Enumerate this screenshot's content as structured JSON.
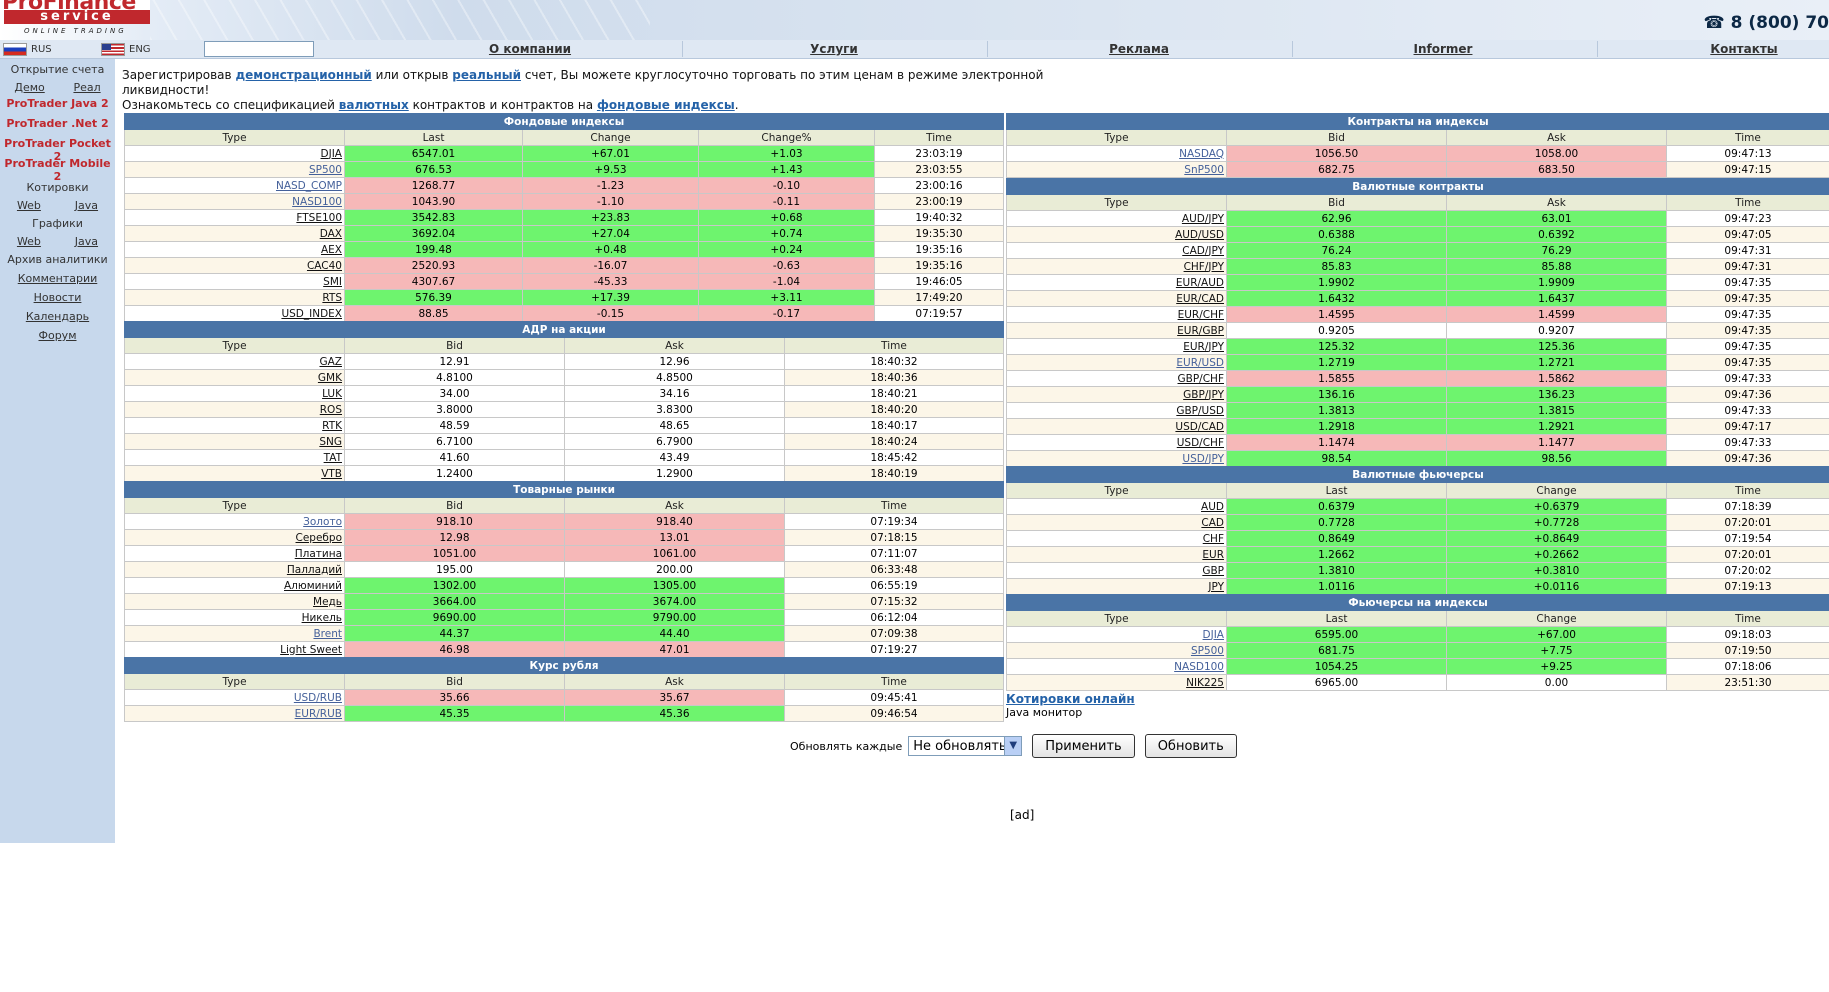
{
  "header": {
    "logo_top": "ProFinance",
    "logo_mid": "service",
    "logo_bottom": "ONLINE TRADING",
    "phone": "☎ 8 (800) 70"
  },
  "lang": {
    "ru": "RUS",
    "en": "ENG"
  },
  "nav": [
    "О компании",
    "Услуги",
    "Реклама",
    "Informer",
    "Контакты"
  ],
  "sidebar": {
    "open_title": "Открытие счета",
    "demo": "Демо",
    "real": "Реал",
    "red_links": [
      "ProTrader Java 2",
      "ProTrader .Net 2",
      "ProTrader Pocket 2",
      "ProTrader Mobile 2"
    ],
    "quotes_title": "Котировки",
    "charts_title": "Графики",
    "web": "Web",
    "java": "Java",
    "archive": "Архив аналитики",
    "items": [
      "Комментарии",
      "Новости",
      "Календарь",
      "Форум"
    ]
  },
  "intro": {
    "l1a": "Зарегистрировав ",
    "l1b": "демонстрационный",
    "l1c": " или открыв ",
    "l1d": "реальный",
    "l1e": " счет, Вы можете круглосуточно торговать по этим ценам в режиме электронной ликвидности!",
    "l2a": "Ознакомьтесь со спецификацией ",
    "l2b": "валютных",
    "l2c": " контрактов и контрактов на ",
    "l2d": "фондовые индексы",
    "l2e": "."
  },
  "tables": {
    "indices": {
      "title": "Фондовые индексы",
      "cols": [
        "Type",
        "Last",
        "Change",
        "Change%",
        "Time"
      ],
      "rows": [
        [
          "DJIA",
          "6547.01",
          "+67.01",
          "+1.03",
          "23:03:19",
          "up",
          0
        ],
        [
          "SP500",
          "676.53",
          "+9.53",
          "+1.43",
          "23:03:55",
          "up",
          1
        ],
        [
          "NASD_COMP",
          "1268.77",
          "-1.23",
          "-0.10",
          "23:00:16",
          "dn",
          1
        ],
        [
          "NASD100",
          "1043.90",
          "-1.10",
          "-0.11",
          "23:00:19",
          "dn",
          1
        ],
        [
          "FTSE100",
          "3542.83",
          "+23.83",
          "+0.68",
          "19:40:32",
          "up",
          0
        ],
        [
          "DAX",
          "3692.04",
          "+27.04",
          "+0.74",
          "19:35:30",
          "up",
          0
        ],
        [
          "AEX",
          "199.48",
          "+0.48",
          "+0.24",
          "19:35:16",
          "up",
          0
        ],
        [
          "CAC40",
          "2520.93",
          "-16.07",
          "-0.63",
          "19:35:16",
          "dn",
          0
        ],
        [
          "SMI",
          "4307.67",
          "-45.33",
          "-1.04",
          "19:46:05",
          "dn",
          0
        ],
        [
          "RTS",
          "576.39",
          "+17.39",
          "+3.11",
          "17:49:20",
          "up",
          0
        ],
        [
          "USD_INDEX",
          "88.85",
          "-0.15",
          "-0.17",
          "07:19:57",
          "dn",
          0
        ]
      ]
    },
    "adr": {
      "title": "АДР на акции",
      "cols": [
        "Type",
        "Bid",
        "Ask",
        "Time"
      ],
      "rows": [
        [
          "GAZ",
          "12.91",
          "12.96",
          "18:40:32"
        ],
        [
          "GMK",
          "4.8100",
          "4.8500",
          "18:40:36"
        ],
        [
          "LUK",
          "34.00",
          "34.16",
          "18:40:21"
        ],
        [
          "ROS",
          "3.8000",
          "3.8300",
          "18:40:20"
        ],
        [
          "RTK",
          "48.59",
          "48.65",
          "18:40:17"
        ],
        [
          "SNG",
          "6.7100",
          "6.7900",
          "18:40:24"
        ],
        [
          "TAT",
          "41.60",
          "43.49",
          "18:45:42"
        ],
        [
          "VTB",
          "1.2400",
          "1.2900",
          "18:40:19"
        ]
      ]
    },
    "commodities": {
      "title": "Товарные рынки",
      "cols": [
        "Type",
        "Bid",
        "Ask",
        "Time"
      ],
      "rows": [
        [
          "Золото",
          "918.10",
          "918.40",
          "07:19:34",
          "dn",
          1
        ],
        [
          "Серебро",
          "12.98",
          "13.01",
          "07:18:15",
          "dn",
          0
        ],
        [
          "Платина",
          "1051.00",
          "1061.00",
          "07:11:07",
          "dn",
          0
        ],
        [
          "Палладий",
          "195.00",
          "200.00",
          "06:33:48",
          "",
          0
        ],
        [
          "Алюминий",
          "1302.00",
          "1305.00",
          "06:55:19",
          "up",
          0
        ],
        [
          "Медь",
          "3664.00",
          "3674.00",
          "07:15:32",
          "up",
          0
        ],
        [
          "Никель",
          "9690.00",
          "9790.00",
          "06:12:04",
          "up",
          0
        ],
        [
          "Brent",
          "44.37",
          "44.40",
          "07:09:38",
          "up",
          1
        ],
        [
          "Light Sweet",
          "46.98",
          "47.01",
          "07:19:27",
          "dn",
          0
        ]
      ]
    },
    "ruble": {
      "title": "Курс рубля",
      "cols": [
        "Type",
        "Bid",
        "Ask",
        "Time"
      ],
      "rows": [
        [
          "USD/RUB",
          "35.66",
          "35.67",
          "09:45:41",
          "dn",
          1
        ],
        [
          "EUR/RUB",
          "45.35",
          "45.36",
          "09:46:54",
          "up",
          1
        ]
      ]
    },
    "index_contracts": {
      "title": "Контракты на индексы",
      "cols": [
        "Type",
        "Bid",
        "Ask",
        "Time"
      ],
      "rows": [
        [
          "NASDAQ",
          "1056.50",
          "1058.00",
          "09:47:13",
          "dn",
          1
        ],
        [
          "SnP500",
          "682.75",
          "683.50",
          "09:47:15",
          "dn",
          1
        ]
      ]
    },
    "fx": {
      "title": "Валютные контракты",
      "cols": [
        "Type",
        "Bid",
        "Ask",
        "Time"
      ],
      "rows": [
        [
          "AUD/JPY",
          "62.96",
          "63.01",
          "09:47:23",
          "up",
          0
        ],
        [
          "AUD/USD",
          "0.6388",
          "0.6392",
          "09:47:05",
          "up",
          0
        ],
        [
          "CAD/JPY",
          "76.24",
          "76.29",
          "09:47:31",
          "up",
          0
        ],
        [
          "CHF/JPY",
          "85.83",
          "85.88",
          "09:47:31",
          "up",
          0
        ],
        [
          "EUR/AUD",
          "1.9902",
          "1.9909",
          "09:47:35",
          "up",
          0
        ],
        [
          "EUR/CAD",
          "1.6432",
          "1.6437",
          "09:47:35",
          "up",
          0
        ],
        [
          "EUR/CHF",
          "1.4595",
          "1.4599",
          "09:47:35",
          "dn",
          0
        ],
        [
          "EUR/GBP",
          "0.9205",
          "0.9207",
          "09:47:35",
          "",
          0
        ],
        [
          "EUR/JPY",
          "125.32",
          "125.36",
          "09:47:35",
          "up",
          0
        ],
        [
          "EUR/USD",
          "1.2719",
          "1.2721",
          "09:47:35",
          "up",
          1
        ],
        [
          "GBP/CHF",
          "1.5855",
          "1.5862",
          "09:47:33",
          "dn",
          0
        ],
        [
          "GBP/JPY",
          "136.16",
          "136.23",
          "09:47:36",
          "up",
          0
        ],
        [
          "GBP/USD",
          "1.3813",
          "1.3815",
          "09:47:33",
          "up",
          0
        ],
        [
          "USD/CAD",
          "1.2918",
          "1.2921",
          "09:47:17",
          "up",
          0
        ],
        [
          "USD/CHF",
          "1.1474",
          "1.1477",
          "09:47:33",
          "dn",
          0
        ],
        [
          "USD/JPY",
          "98.54",
          "98.56",
          "09:47:36",
          "up",
          1
        ]
      ]
    },
    "fx_futures": {
      "title": "Валютные фьючерсы",
      "cols": [
        "Type",
        "Last",
        "Change",
        "Time"
      ],
      "rows": [
        [
          "AUD",
          "0.6379",
          "+0.6379",
          "07:18:39",
          "up",
          0
        ],
        [
          "CAD",
          "0.7728",
          "+0.7728",
          "07:20:01",
          "up",
          0
        ],
        [
          "CHF",
          "0.8649",
          "+0.8649",
          "07:19:54",
          "up",
          0
        ],
        [
          "EUR",
          "1.2662",
          "+0.2662",
          "07:20:01",
          "up",
          0
        ],
        [
          "GBP",
          "1.3810",
          "+0.3810",
          "07:20:02",
          "up",
          0
        ],
        [
          "JPY",
          "1.0116",
          "+0.0116",
          "07:19:13",
          "up",
          0
        ]
      ]
    },
    "index_futures": {
      "title": "Фьючерсы на индексы",
      "cols": [
        "Type",
        "Last",
        "Change",
        "Time"
      ],
      "rows": [
        [
          "DJIA",
          "6595.00",
          "+67.00",
          "09:18:03",
          "up",
          1
        ],
        [
          "SP500",
          "681.75",
          "+7.75",
          "07:19:50",
          "up",
          1
        ],
        [
          "NASD100",
          "1054.25",
          "+9.25",
          "07:18:06",
          "up",
          1
        ],
        [
          "NIK225",
          "6965.00",
          "0.00",
          "23:51:30",
          "",
          0
        ]
      ]
    }
  },
  "bottom": {
    "quotes_online": "Котировки онлайн",
    "java_monitor": "Java монитор",
    "refresh_label": "Обновлять каждые",
    "refresh_value": "Не обновлять",
    "apply": "Применить",
    "update": "Обновить",
    "ad": "[ad]"
  }
}
